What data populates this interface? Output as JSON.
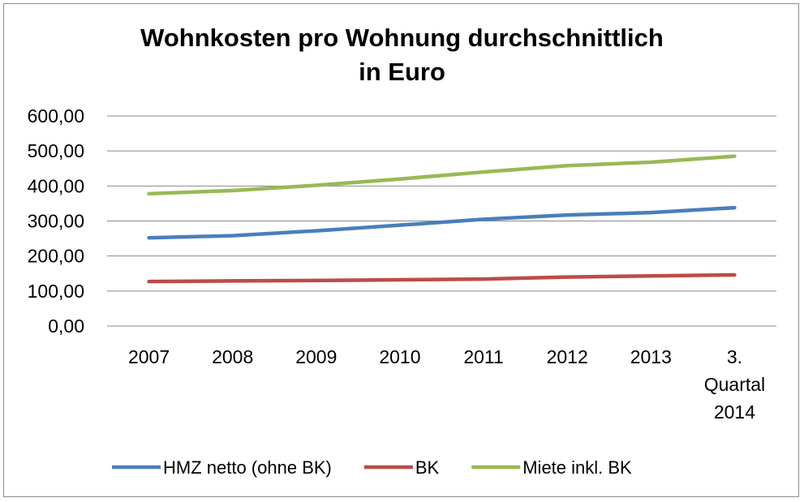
{
  "chart_data": {
    "type": "line",
    "title_line1": "Wohnkosten pro Wohnung durchschnittlich",
    "title_line2": "in Euro",
    "categories": [
      "2007",
      "2008",
      "2009",
      "2010",
      "2011",
      "2012",
      "2013",
      "3. Quartal 2014"
    ],
    "category_lines": [
      [
        "2007"
      ],
      [
        "2008"
      ],
      [
        "2009"
      ],
      [
        "2010"
      ],
      [
        "2011"
      ],
      [
        "2012"
      ],
      [
        "2013"
      ],
      [
        "3.",
        "Quartal",
        "2014"
      ]
    ],
    "y_ticks": [
      "0,00",
      "100,00",
      "200,00",
      "300,00",
      "400,00",
      "500,00",
      "600,00"
    ],
    "ylim": [
      0,
      600
    ],
    "grid": true,
    "legend_position": "bottom",
    "series": [
      {
        "name": "HMZ netto (ohne BK)",
        "color": "#4a7ebb",
        "values": [
          252,
          258,
          272,
          288,
          305,
          317,
          324,
          338
        ]
      },
      {
        "name": "BK",
        "color": "#be4b48",
        "values": [
          127,
          129,
          130,
          132,
          134,
          140,
          143,
          146
        ]
      },
      {
        "name": "Miete inkl. BK",
        "color": "#98b954",
        "values": [
          378,
          387,
          402,
          420,
          440,
          458,
          468,
          485
        ]
      }
    ]
  }
}
